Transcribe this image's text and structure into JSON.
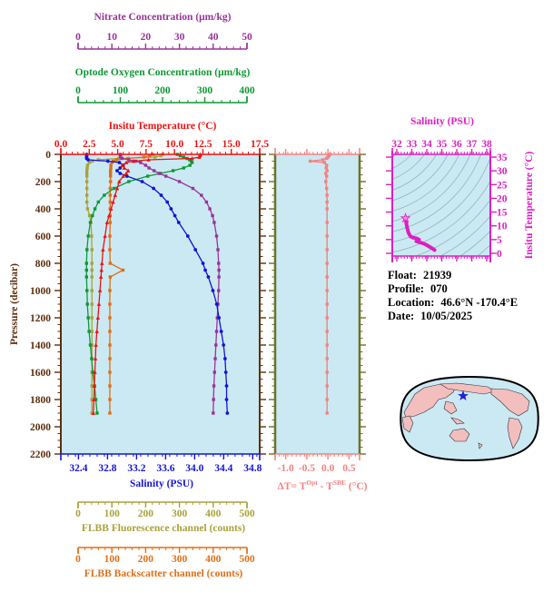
{
  "info": {
    "float_label": "Float:",
    "float_value": "21939",
    "profile_label": "Profile:",
    "profile_value": "070",
    "location_label": "Location:",
    "location_value": "46.6°N  -170.4°E",
    "date_label": "Date:",
    "date_value": "10/05/2025"
  },
  "titles": {
    "nitrate": "Nitrate Concentration (μm/kg)",
    "oxygen": "Optode Oxygen Concentration (μm/kg)",
    "temperature": "Insitu Temperature (°C)",
    "salinity": "Salinity (PSU)",
    "pressure": "Pressure (decibar)",
    "fluorescence": "FLBB Fluorescence channel (counts)",
    "backscatter": "FLBB Backscatter channel (counts)",
    "ts_salinity": "Salinity (PSU)",
    "ts_temperature": "Insitu Temperature (°C)",
    "delta_t_pre": "ΔT= T",
    "delta_t_sup1": "Opt",
    "delta_t_mid": " - T",
    "delta_t_sup2": "SBE",
    "delta_t_post": " (°C)"
  },
  "colors": {
    "nitrate": "#993399",
    "oxygen": "#0D9933",
    "temperature": "#EE1111",
    "salinity": "#1414D6",
    "pressure": "#5C2E0E",
    "fluorescence": "#A9A23A",
    "backscatter": "#DE6E17",
    "delta_t": "#F28282",
    "delta_t_frame": "#6C7227",
    "ts": "#DC1EC2",
    "ts_star": "#FF80D0",
    "contour": "#8FB6BD",
    "plot_bg": "#CBE9F3",
    "map_ocean": "#CBE9F3",
    "map_land": "#F2BEBE",
    "map_outline": "#000000",
    "map_star": "#1E1EDC"
  },
  "chart_data": [
    {
      "id": "depth_profiles",
      "type": "line",
      "title": "Multi-variable vertical profiles",
      "y_axis": {
        "label": "Pressure (decibar)",
        "min": 0,
        "max": 2200,
        "inverted": true,
        "ticks": [
          0,
          200,
          400,
          600,
          800,
          1000,
          1200,
          1400,
          1600,
          1800,
          2000,
          2200
        ],
        "tick_labels": [
          "0",
          "200",
          "400",
          "600",
          "800",
          "1000",
          "1200",
          "1400",
          "1600",
          "1800",
          "2000",
          "2200"
        ],
        "minor_step": 50
      },
      "pressure": [
        0,
        10,
        20,
        30,
        40,
        50,
        60,
        80,
        100,
        120,
        140,
        160,
        200,
        250,
        300,
        350,
        400,
        450,
        500,
        600,
        700,
        800,
        850,
        900,
        1000,
        1100,
        1200,
        1300,
        1400,
        1500,
        1600,
        1700,
        1800,
        1900
      ],
      "series": [
        {
          "key": "fluorescence",
          "name": "FLBB Fluorescence channel (counts)",
          "color": "#A9A23A",
          "marker": "square",
          "axis_min": 0,
          "axis_max": 500,
          "ticks": [
            0,
            100,
            200,
            300,
            400,
            500
          ],
          "tick_labels": [
            "0",
            "100",
            "200",
            "300",
            "400",
            "500"
          ],
          "minor_step": 20,
          "values": [
            250,
            245,
            228,
            120,
            60,
            42,
            33,
            28,
            27,
            26,
            26,
            26,
            26,
            26,
            26,
            26,
            28,
            34,
            38,
            40,
            41,
            41,
            41,
            41,
            41,
            41,
            41,
            41,
            41,
            41,
            41,
            41,
            41,
            41
          ]
        },
        {
          "key": "backscatter",
          "name": "FLBB Backscatter channel (counts)",
          "color": "#DE6E17",
          "marker": "square",
          "axis_min": 0,
          "axis_max": 500,
          "ticks": [
            0,
            100,
            200,
            300,
            400,
            500
          ],
          "tick_labels": [
            "0",
            "100",
            "200",
            "300",
            "400",
            "500"
          ],
          "minor_step": 20,
          "values": [
            220,
            212,
            195,
            148,
            114,
            104,
            100,
            97,
            97,
            96,
            96,
            96,
            96,
            95,
            95,
            95,
            95,
            95,
            95,
            94,
            94,
            95,
            133,
            95,
            94,
            94,
            94,
            94,
            94,
            94,
            94,
            94,
            94,
            94
          ]
        },
        {
          "key": "oxygen",
          "name": "Optode Oxygen Concentration (μm/kg)",
          "color": "#0D9933",
          "marker": "square",
          "axis_min": 0,
          "axis_max": 400,
          "ticks": [
            0,
            100,
            200,
            300,
            400
          ],
          "tick_labels": [
            "0",
            "100",
            "200",
            "300",
            "400"
          ],
          "minor_step": 20,
          "values": [
            235,
            242,
            250,
            258,
            264,
            268,
            270,
            265,
            250,
            225,
            195,
            165,
            120,
            85,
            62,
            48,
            40,
            34,
            29,
            24,
            21,
            20,
            20,
            20,
            21,
            22,
            24,
            26,
            29,
            32,
            35,
            39,
            42,
            45
          ]
        },
        {
          "key": "nitrate",
          "name": "Nitrate Concentration (μm/kg)",
          "color": "#993399",
          "marker": "square",
          "axis_min": 0,
          "axis_max": 50,
          "ticks": [
            0,
            10,
            20,
            30,
            40,
            50
          ],
          "tick_labels": [
            "0",
            "10",
            "20",
            "30",
            "40",
            "50"
          ],
          "minor_step": 2,
          "values": [
            12.5,
            12.5,
            12.6,
            13,
            15,
            17,
            18.5,
            20,
            21,
            22.5,
            24,
            26,
            30,
            34,
            36.5,
            38,
            39,
            39.8,
            40.3,
            41,
            41.4,
            41.6,
            41.7,
            41.7,
            41.6,
            41.4,
            41.2,
            41,
            40.8,
            40.6,
            40.4,
            40.2,
            40.1,
            40
          ]
        },
        {
          "key": "salinity",
          "name": "Salinity (PSU)",
          "color": "#1414D6",
          "marker": "circle",
          "axis_min": 32.4,
          "axis_max": 34.8,
          "ticks": [
            32.4,
            32.8,
            33.2,
            33.6,
            34.0,
            34.4,
            34.8
          ],
          "tick_labels": [
            "32.4",
            "32.8",
            "33.2",
            "33.6",
            "34.0",
            "34.4",
            "34.8"
          ],
          "minor_step": 0.1,
          "values": [
            32.62,
            32.62,
            32.62,
            32.62,
            32.64,
            32.9,
            33.05,
            33.1,
            33.06,
            33.02,
            33.06,
            33.15,
            33.35,
            33.5,
            33.6,
            33.68,
            33.73,
            33.78,
            33.83,
            33.95,
            34.05,
            34.15,
            34.18,
            34.22,
            34.28,
            34.33,
            34.36,
            34.39,
            34.42,
            34.44,
            34.45,
            34.46,
            34.46,
            34.47
          ]
        },
        {
          "key": "temperature",
          "name": "Insitu Temperature (°C)",
          "color": "#EE1111",
          "marker": "triangle",
          "axis_min": 0,
          "axis_max": 17.5,
          "ticks": [
            0,
            2.5,
            5,
            7.5,
            10,
            12.5,
            15,
            17.5
          ],
          "tick_labels": [
            "0.0",
            "2.5",
            "5.0",
            "7.5",
            "10.0",
            "12.5",
            "15.0",
            "17.5"
          ],
          "minor_step": 0.5,
          "values": [
            12.6,
            12.6,
            12.5,
            11.8,
            7.5,
            6.0,
            5.3,
            4.9,
            5.1,
            5.5,
            5.3,
            5.0,
            4.6,
            4.4,
            4.2,
            4.0,
            3.8,
            3.6,
            3.4,
            3.2,
            3.0,
            2.9,
            2.85,
            2.8,
            2.7,
            2.6,
            2.5,
            2.4,
            2.3,
            2.25,
            2.2,
            2.15,
            2.1,
            2.05
          ]
        }
      ]
    },
    {
      "id": "temperature_difference",
      "type": "line",
      "title": "ΔT = T(Opt) - T(SBE) (°C)",
      "x_axis": {
        "min": -1.25,
        "max": 0.75,
        "ticks": [
          -1.0,
          -0.5,
          0.0,
          0.5
        ],
        "tick_labels": [
          "-1.0",
          "-0.5",
          "0.0",
          "0.5"
        ],
        "minor_step": 0.1
      },
      "y_axis": {
        "label": "Pressure (decibar)",
        "min": 0,
        "max": 2200,
        "inverted": true,
        "minor_step": 50,
        "ticks": [
          0,
          200,
          400,
          600,
          800,
          1000,
          1200,
          1400,
          1600,
          1800,
          2000,
          2200
        ]
      },
      "pressure": [
        0,
        10,
        20,
        30,
        40,
        50,
        60,
        80,
        100,
        120,
        140,
        160,
        200,
        250,
        300,
        350,
        400,
        500,
        600,
        700,
        800,
        900,
        1000,
        1100,
        1200,
        1300,
        1400,
        1500,
        1600,
        1700,
        1800,
        1900
      ],
      "values": [
        0.05,
        0.02,
        0.0,
        -0.03,
        -0.12,
        -0.42,
        -0.08,
        -0.03,
        -0.04,
        -0.02,
        -0.05,
        -0.03,
        -0.05,
        -0.03,
        -0.02,
        -0.02,
        -0.02,
        -0.02,
        -0.02,
        -0.02,
        -0.02,
        -0.02,
        -0.02,
        -0.02,
        -0.02,
        -0.02,
        -0.02,
        -0.02,
        -0.02,
        -0.02,
        -0.02,
        -0.02
      ]
    },
    {
      "id": "ts_diagram",
      "type": "scatter",
      "title": "Temperature-Salinity diagram with isopycnal contours",
      "x_axis": {
        "label": "Salinity (PSU)",
        "min": 32,
        "max": 38,
        "ticks": [
          32,
          33,
          34,
          35,
          36,
          37,
          38
        ],
        "tick_labels": [
          "32",
          "33",
          "34",
          "35",
          "36",
          "37",
          "38"
        ],
        "minor_step": 0.2
      },
      "y_axis": {
        "label": "Insitu Temperature (°C)",
        "min": 0,
        "max": 35,
        "ticks": [
          0,
          5,
          10,
          15,
          20,
          25,
          30,
          35
        ],
        "tick_labels": [
          "0",
          "5",
          "10",
          "15",
          "20",
          "25",
          "30",
          "35"
        ],
        "minor_step": 1
      },
      "points": [
        [
          32.58,
          12.8
        ],
        [
          32.62,
          11.4
        ],
        [
          32.66,
          10.1
        ],
        [
          32.71,
          8.9
        ],
        [
          32.76,
          7.8
        ],
        [
          32.83,
          6.9
        ],
        [
          32.93,
          6.1
        ],
        [
          33.08,
          5.7
        ],
        [
          33.28,
          5.5
        ],
        [
          33.48,
          5.0
        ],
        [
          33.3,
          4.4
        ],
        [
          33.52,
          4.0
        ],
        [
          33.76,
          3.6
        ],
        [
          33.96,
          3.1
        ],
        [
          34.12,
          2.6
        ],
        [
          34.27,
          2.1
        ],
        [
          34.42,
          1.6
        ],
        [
          34.52,
          1.2
        ]
      ],
      "surface_marker": "star"
    }
  ]
}
